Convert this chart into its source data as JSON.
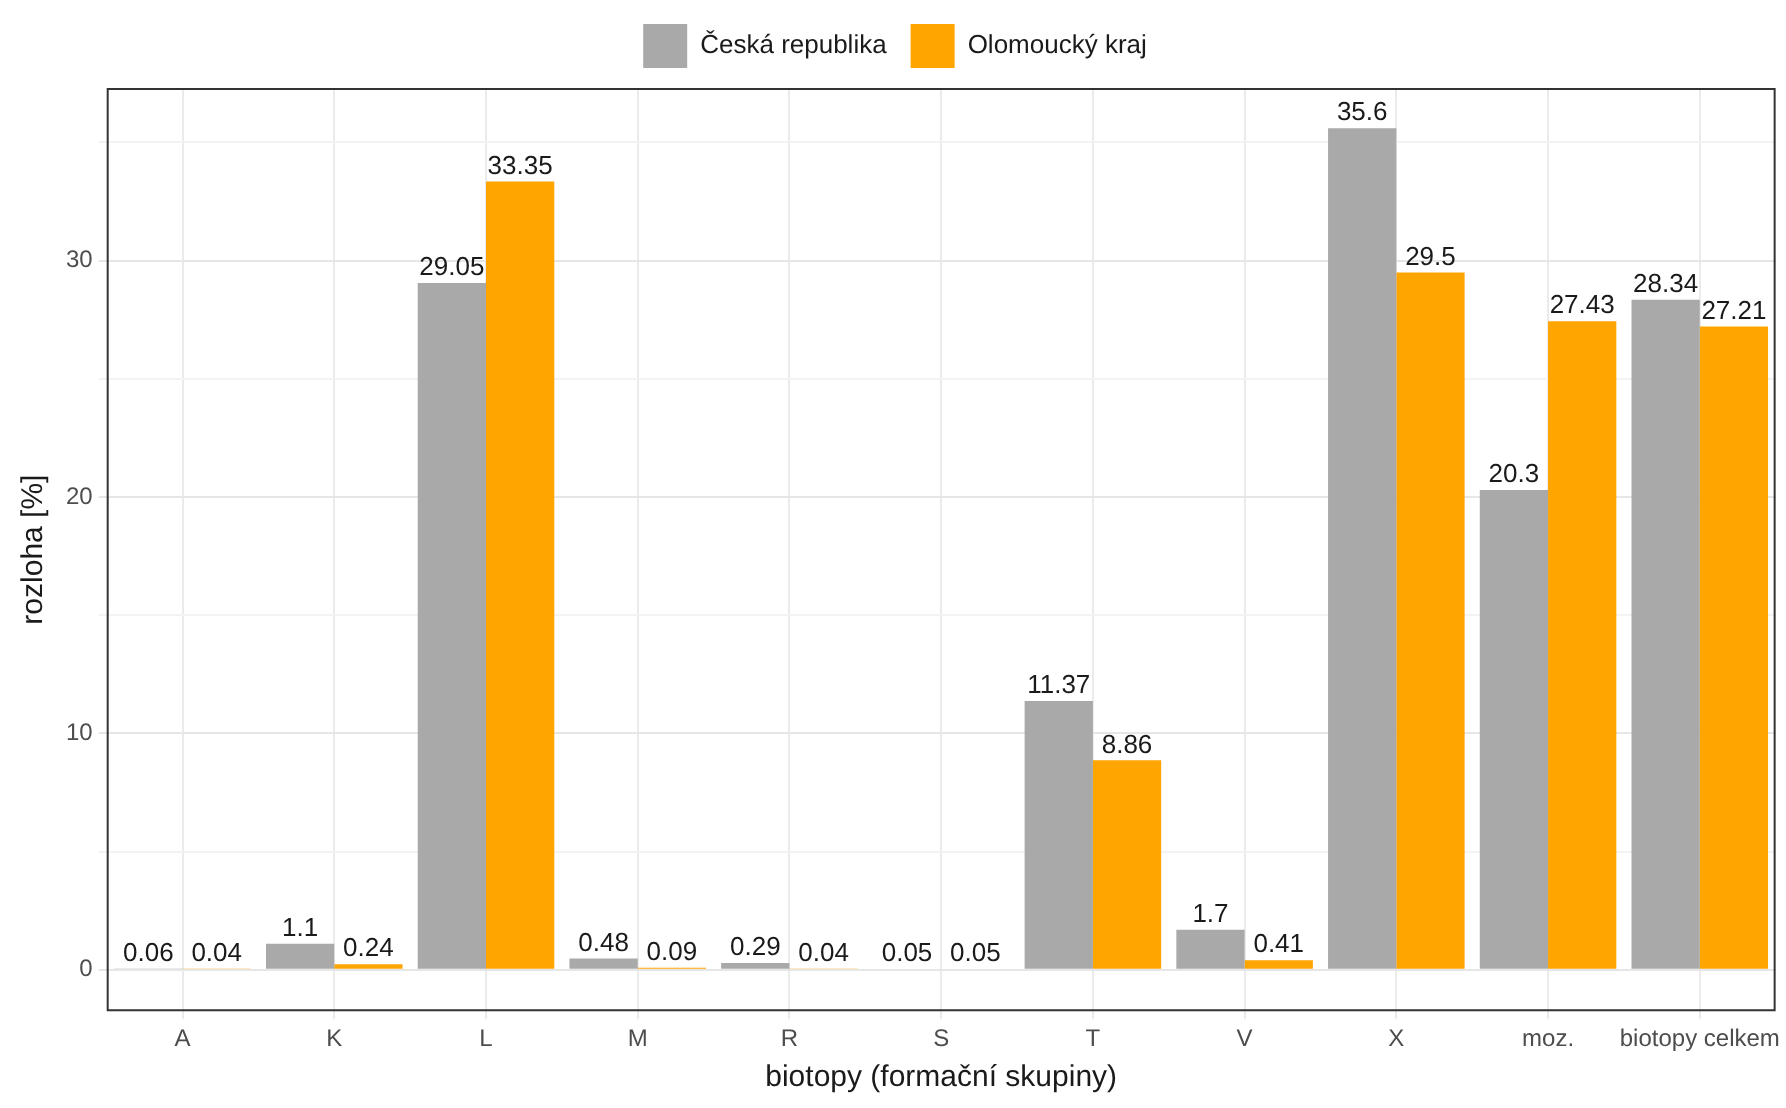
{
  "chart_data": {
    "type": "bar",
    "xlabel": "biotopy (formační skupiny)",
    "ylabel": "rozloha [%]",
    "categories": [
      "A",
      "K",
      "L",
      "M",
      "R",
      "S",
      "T",
      "V",
      "X",
      "moz.",
      "biotopy celkem"
    ],
    "series": [
      {
        "name": "Česká republika",
        "color": "#a9a9a9",
        "values": [
          0.06,
          1.1,
          29.05,
          0.48,
          0.29,
          0.05,
          11.37,
          1.7,
          35.6,
          20.3,
          28.34
        ]
      },
      {
        "name": "Olomoucký kraj",
        "color": "#ffa500",
        "values": [
          0.04,
          0.24,
          33.35,
          0.09,
          0.04,
          0.05,
          8.86,
          0.41,
          29.5,
          27.43,
          27.21
        ]
      }
    ],
    "ylim": [
      -1.75,
      37.3
    ],
    "yticks": [
      0,
      {
        "value": 5,
        "label": null
      },
      10,
      {
        "value": 15,
        "label": null
      },
      20,
      {
        "value": 25,
        "label": null
      },
      30,
      {
        "value": 35,
        "label": null
      }
    ],
    "grid": true,
    "legend": "top",
    "data_labels": true
  }
}
